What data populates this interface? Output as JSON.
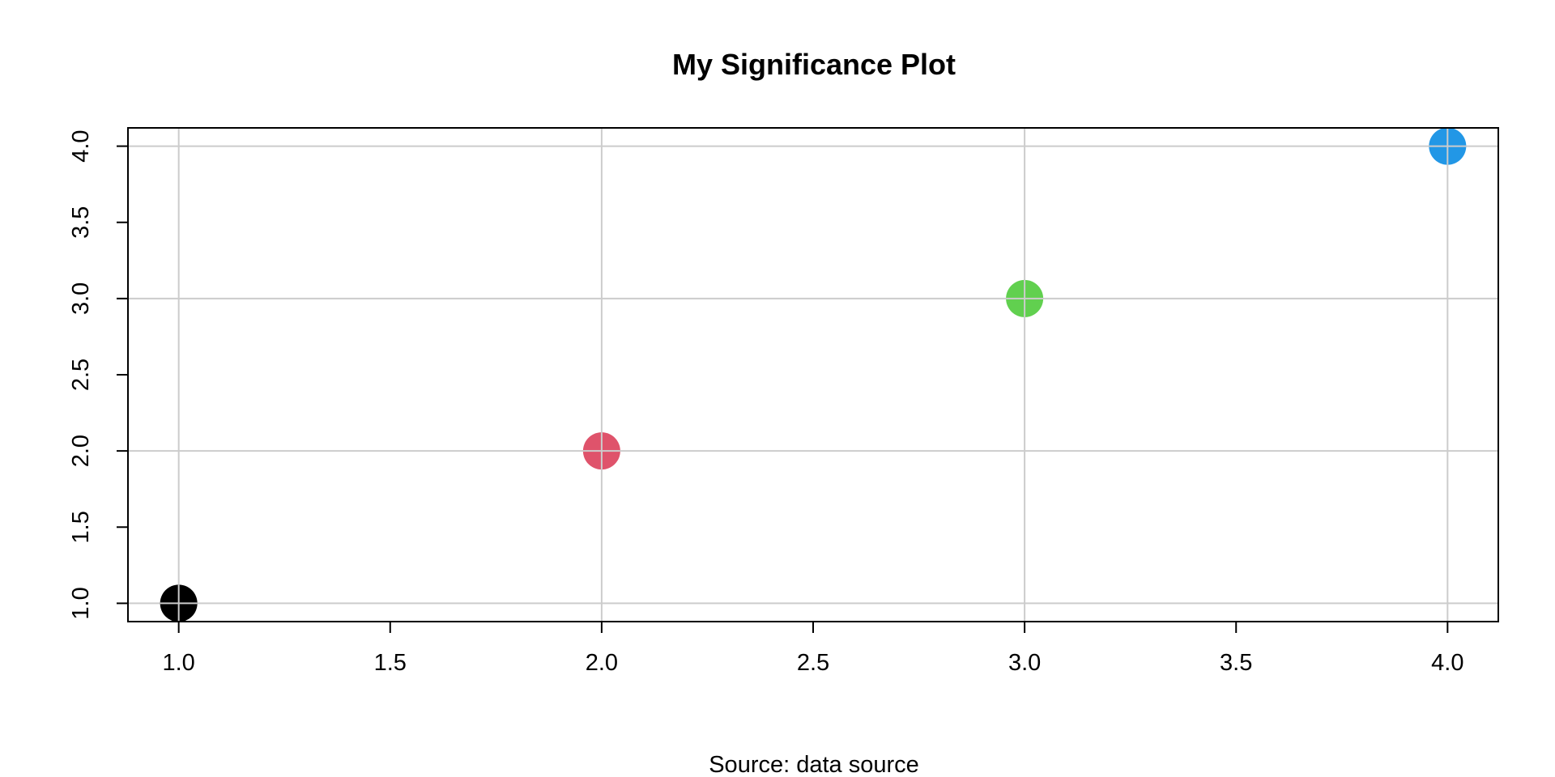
{
  "chart_data": {
    "type": "scatter",
    "title": "My Significance Plot",
    "xlabel": "",
    "ylabel": "",
    "source_note": "Source: data source",
    "x": [
      1.0,
      2.0,
      3.0,
      4.0
    ],
    "y": [
      1.0,
      2.0,
      3.0,
      4.0
    ],
    "point_colors": [
      "#000000",
      "#DF536B",
      "#61D04F",
      "#2297E6"
    ],
    "xlim": [
      0.88,
      4.12
    ],
    "ylim": [
      0.88,
      4.12
    ],
    "x_ticks": [
      1.0,
      1.5,
      2.0,
      2.5,
      3.0,
      3.5,
      4.0
    ],
    "x_tick_labels": [
      "1.0",
      "1.5",
      "2.0",
      "2.5",
      "3.0",
      "3.5",
      "4.0"
    ],
    "y_ticks": [
      1.0,
      1.5,
      2.0,
      2.5,
      3.0,
      3.5,
      4.0
    ],
    "y_tick_labels": [
      "1.0",
      "1.5",
      "2.0",
      "2.5",
      "3.0",
      "3.5",
      "4.0"
    ],
    "x_grid": [
      1.0,
      2.0,
      3.0,
      4.0
    ],
    "y_grid": [
      1.0,
      2.0,
      3.0,
      4.0
    ],
    "grid": true,
    "grid_color": "#cccccc",
    "legend": "none"
  }
}
